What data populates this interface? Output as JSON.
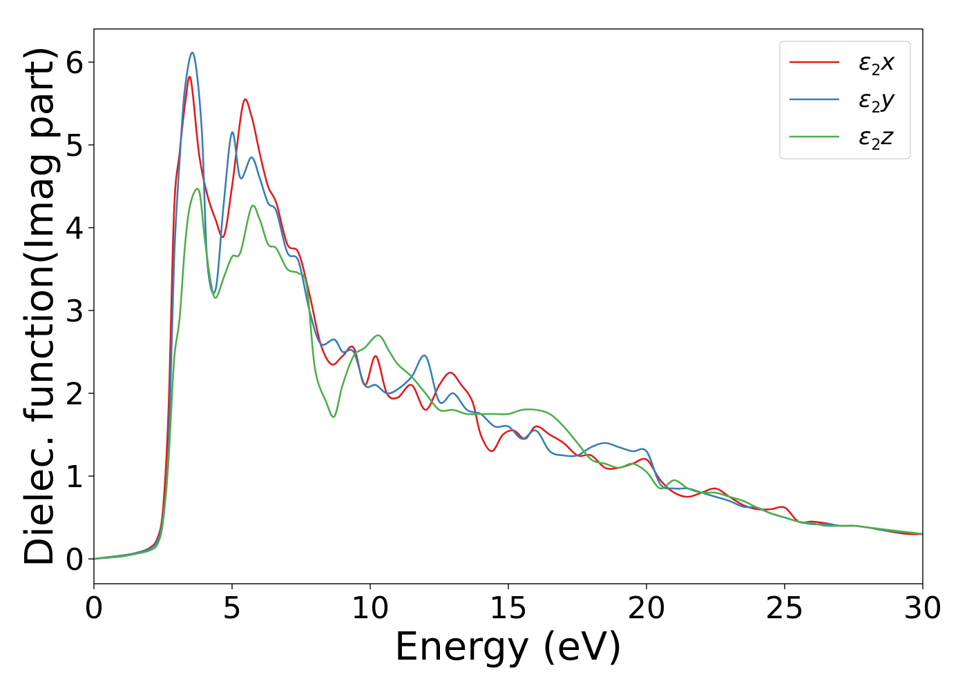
{
  "chart_data": {
    "type": "line",
    "title": "",
    "xlabel": "Energy (eV)",
    "ylabel": "Dielec. function(Imag part)",
    "xlim": [
      0,
      30
    ],
    "ylim": [
      -0.3,
      6.4
    ],
    "xticks": [
      0,
      5,
      10,
      15,
      20,
      25,
      30
    ],
    "xtick_labels": [
      "0",
      "5",
      "10",
      "15",
      "20",
      "25",
      "30"
    ],
    "yticks": [
      0,
      1,
      2,
      3,
      4,
      5,
      6
    ],
    "ytick_labels": [
      "0",
      "1",
      "2",
      "3",
      "4",
      "5",
      "6"
    ],
    "grid": false,
    "legend_position": "top-right",
    "series": [
      {
        "name": "ε2x",
        "legend_base": "ε",
        "legend_sub": "2",
        "legend_tail": "x",
        "color": "#e41a1c",
        "x": [
          0,
          1,
          1.5,
          2,
          2.3,
          2.5,
          2.7,
          2.9,
          3.1,
          3.3,
          3.5,
          3.8,
          4.1,
          4.4,
          4.7,
          5.0,
          5.4,
          5.7,
          6.0,
          6.3,
          6.6,
          7.0,
          7.4,
          7.8,
          8.2,
          8.6,
          9.0,
          9.4,
          9.8,
          10.2,
          10.6,
          11.0,
          11.5,
          12.0,
          12.5,
          12.9,
          13.3,
          13.7,
          14.0,
          14.4,
          14.8,
          15.2,
          15.6,
          16.0,
          16.5,
          17.0,
          17.5,
          18.0,
          18.5,
          19.0,
          19.5,
          20.0,
          20.5,
          21.0,
          21.5,
          22.0,
          22.5,
          23.0,
          23.5,
          24.0,
          24.5,
          25.0,
          25.5,
          26.0,
          26.5,
          27.0,
          27.5,
          28.0,
          28.5,
          29.0,
          29.5,
          30.0
        ],
        "y": [
          0,
          0.04,
          0.07,
          0.13,
          0.25,
          0.6,
          1.8,
          4.2,
          4.9,
          5.5,
          5.8,
          4.9,
          4.4,
          4.1,
          3.9,
          4.5,
          5.5,
          5.35,
          4.9,
          4.5,
          4.3,
          3.8,
          3.7,
          3.2,
          2.6,
          2.35,
          2.45,
          2.55,
          2.1,
          2.45,
          2.0,
          1.95,
          2.1,
          1.8,
          2.1,
          2.25,
          2.1,
          1.9,
          1.5,
          1.3,
          1.5,
          1.55,
          1.45,
          1.6,
          1.5,
          1.4,
          1.25,
          1.25,
          1.1,
          1.1,
          1.15,
          1.2,
          0.95,
          0.8,
          0.75,
          0.8,
          0.85,
          0.75,
          0.65,
          0.6,
          0.6,
          0.62,
          0.45,
          0.45,
          0.43,
          0.4,
          0.4,
          0.38,
          0.35,
          0.32,
          0.3,
          0.3
        ]
      },
      {
        "name": "ε2y",
        "legend_base": "ε",
        "legend_sub": "2",
        "legend_tail": "y",
        "color": "#377eb8",
        "x": [
          0,
          1,
          1.5,
          2,
          2.3,
          2.5,
          2.7,
          2.9,
          3.1,
          3.3,
          3.6,
          3.9,
          4.1,
          4.4,
          4.7,
          5.0,
          5.3,
          5.7,
          6.0,
          6.3,
          6.6,
          7.0,
          7.4,
          7.8,
          8.2,
          8.7,
          9.0,
          9.4,
          9.8,
          10.2,
          10.6,
          11.0,
          11.5,
          12.0,
          12.5,
          13.0,
          13.5,
          14.0,
          14.5,
          15.0,
          15.5,
          16.0,
          16.5,
          17.0,
          17.5,
          18.0,
          18.5,
          19.0,
          19.5,
          20.0,
          20.5,
          21.0,
          21.5,
          22.0,
          22.5,
          23.0,
          23.5,
          24.0,
          24.5,
          25.0,
          25.5,
          26.0,
          26.5,
          27.0,
          27.5,
          28.0,
          28.5,
          29.0,
          29.5,
          30.0
        ],
        "y": [
          0,
          0.04,
          0.07,
          0.12,
          0.22,
          0.5,
          1.3,
          3.6,
          4.8,
          5.7,
          6.1,
          5.2,
          3.6,
          3.25,
          4.3,
          5.15,
          4.6,
          4.85,
          4.6,
          4.3,
          4.2,
          3.7,
          3.6,
          3.0,
          2.6,
          2.65,
          2.5,
          2.5,
          2.1,
          2.1,
          2.0,
          2.05,
          2.2,
          2.45,
          1.9,
          2.0,
          1.8,
          1.75,
          1.6,
          1.6,
          1.45,
          1.55,
          1.3,
          1.25,
          1.25,
          1.35,
          1.4,
          1.35,
          1.3,
          1.3,
          0.9,
          0.85,
          0.85,
          0.8,
          0.75,
          0.7,
          0.63,
          0.62,
          0.55,
          0.5,
          0.45,
          0.42,
          0.42,
          0.4,
          0.4,
          0.38,
          0.35,
          0.33,
          0.32,
          0.3
        ]
      },
      {
        "name": "ε2z",
        "legend_base": "ε",
        "legend_sub": "2",
        "legend_tail": "z",
        "color": "#4daf4a",
        "x": [
          0,
          1,
          1.5,
          2,
          2.3,
          2.5,
          2.7,
          2.9,
          3.1,
          3.3,
          3.5,
          3.8,
          4.0,
          4.2,
          4.4,
          4.7,
          5.0,
          5.3,
          5.7,
          6.0,
          6.3,
          6.6,
          7.0,
          7.4,
          7.7,
          8.0,
          8.4,
          8.7,
          9.0,
          9.4,
          9.8,
          10.3,
          10.7,
          11.0,
          11.5,
          12.0,
          12.5,
          13.0,
          13.5,
          14.0,
          14.5,
          15.0,
          15.5,
          16.0,
          16.5,
          17.0,
          17.5,
          18.0,
          18.5,
          19.0,
          19.5,
          20.0,
          20.5,
          21.0,
          21.5,
          22.0,
          22.5,
          23.0,
          23.5,
          24.0,
          24.5,
          25.0,
          25.5,
          26.0,
          26.5,
          27.0,
          27.5,
          28.0,
          28.5,
          29.0,
          29.5,
          30.0
        ],
        "y": [
          0,
          0.03,
          0.06,
          0.1,
          0.18,
          0.45,
          1.2,
          2.4,
          2.9,
          3.8,
          4.3,
          4.45,
          3.9,
          3.4,
          3.15,
          3.4,
          3.65,
          3.7,
          4.25,
          4.1,
          3.8,
          3.75,
          3.5,
          3.45,
          3.3,
          2.3,
          1.9,
          1.72,
          2.1,
          2.45,
          2.55,
          2.7,
          2.5,
          2.35,
          2.2,
          2.0,
          1.8,
          1.8,
          1.75,
          1.75,
          1.75,
          1.75,
          1.8,
          1.8,
          1.75,
          1.6,
          1.4,
          1.2,
          1.15,
          1.1,
          1.15,
          1.05,
          0.85,
          0.95,
          0.85,
          0.8,
          0.8,
          0.75,
          0.7,
          0.62,
          0.55,
          0.5,
          0.45,
          0.43,
          0.4,
          0.4,
          0.4,
          0.38,
          0.36,
          0.34,
          0.32,
          0.3
        ]
      }
    ]
  }
}
